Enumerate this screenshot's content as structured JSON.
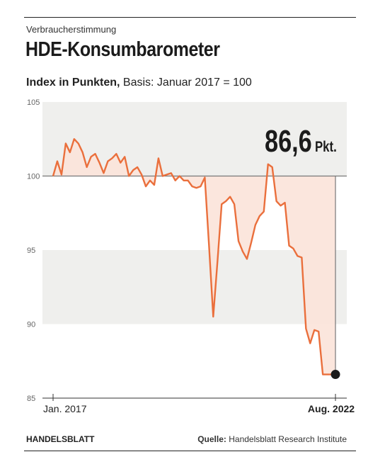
{
  "header": {
    "kicker": "Verbraucherstimmung",
    "title": "HDE-Konsumbarometer",
    "subtitle_bold": "Index in Punkten,",
    "subtitle_rest": " Basis: Januar 2017 = 100"
  },
  "footer": {
    "brand": "HANDELSBLATT",
    "source_label": "Quelle:",
    "source_text": " Handelsblatt Research Institute"
  },
  "colors": {
    "line": "#ea6f3c",
    "fill": "#fbe3d9",
    "band": "#efefed",
    "baseline": "#777777",
    "dot": "#1b1b1b"
  },
  "chart_data": {
    "type": "line",
    "title": "HDE-Konsumbarometer",
    "subtitle": "Index in Punkten, Basis: Januar 2017 = 100",
    "xlabel": "",
    "ylabel": "",
    "ylim": [
      85,
      105
    ],
    "yticks": [
      "85",
      "90",
      "95",
      "100",
      "105"
    ],
    "ytick_values": [
      85,
      90,
      95,
      100,
      105
    ],
    "xtick_labels": [
      {
        "label": "Jan. 2017",
        "index": 0,
        "bold": false
      },
      {
        "label": "Aug. 2022",
        "index": 67,
        "bold": true
      }
    ],
    "baseline": 100,
    "shaded_bands": [
      [
        100,
        105
      ],
      [
        90,
        95
      ]
    ],
    "grid": false,
    "x": [
      "2017-01",
      "2017-02",
      "2017-03",
      "2017-04",
      "2017-05",
      "2017-06",
      "2017-07",
      "2017-08",
      "2017-09",
      "2017-10",
      "2017-11",
      "2017-12",
      "2018-01",
      "2018-02",
      "2018-03",
      "2018-04",
      "2018-05",
      "2018-06",
      "2018-07",
      "2018-08",
      "2018-09",
      "2018-10",
      "2018-11",
      "2018-12",
      "2019-01",
      "2019-02",
      "2019-03",
      "2019-04",
      "2019-05",
      "2019-06",
      "2019-07",
      "2019-08",
      "2019-09",
      "2019-10",
      "2019-11",
      "2019-12",
      "2020-01",
      "2020-02",
      "2020-03",
      "2020-04",
      "2020-05",
      "2020-06",
      "2020-07",
      "2020-08",
      "2020-09",
      "2020-10",
      "2020-11",
      "2020-12",
      "2021-01",
      "2021-02",
      "2021-03",
      "2021-04",
      "2021-05",
      "2021-06",
      "2021-07",
      "2021-08",
      "2021-09",
      "2021-10",
      "2021-11",
      "2021-12",
      "2022-01",
      "2022-02",
      "2022-03",
      "2022-04",
      "2022-05",
      "2022-06",
      "2022-07",
      "2022-08"
    ],
    "series": [
      {
        "values": [
          100.0,
          101.0,
          100.1,
          102.2,
          101.6,
          102.5,
          102.2,
          101.6,
          100.6,
          101.3,
          101.5,
          100.9,
          100.2,
          101.0,
          101.2,
          101.5,
          100.9,
          101.3,
          100.0,
          100.4,
          100.6,
          100.1,
          99.3,
          99.7,
          99.4,
          101.2,
          100.0,
          100.1,
          100.2,
          99.7,
          100.0,
          99.7,
          99.7,
          99.3,
          99.2,
          99.3,
          99.9,
          95.3,
          90.5,
          94.2,
          98.1,
          98.3,
          98.6,
          98.1,
          95.6,
          94.9,
          94.4,
          95.5,
          96.7,
          97.3,
          97.6,
          100.8,
          100.6,
          98.3,
          98.0,
          98.2,
          95.3,
          95.1,
          94.6,
          94.5,
          89.7,
          88.7,
          89.6,
          89.5,
          86.6,
          86.6,
          86.6,
          86.6
        ],
        "final_index": 67
      }
    ],
    "annotation": {
      "value": "86,6",
      "unit": "Pkt."
    }
  }
}
